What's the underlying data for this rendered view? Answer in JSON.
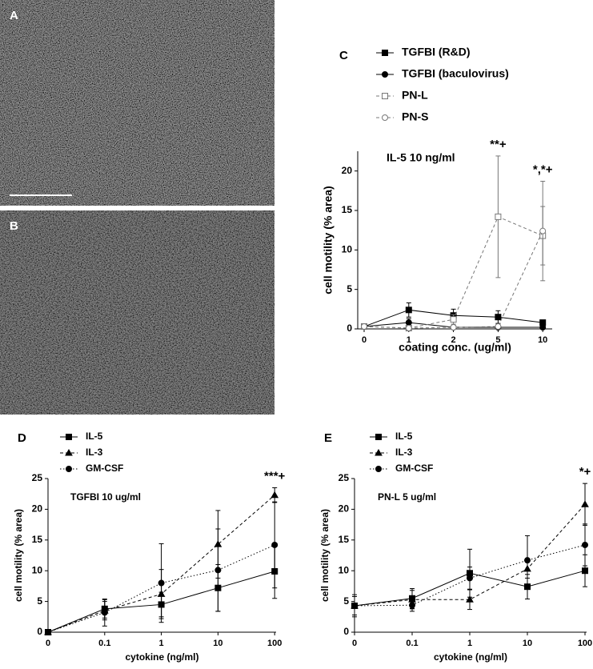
{
  "figure": {
    "image_labels": [
      "A",
      "B"
    ]
  },
  "chart_data": [
    {
      "type": "line",
      "panel_label": "C",
      "title": "IL-5 10 ng/ml",
      "x_label": "coating conc. (ug/ml)",
      "y_label": "cell motility (% area)",
      "categories": [
        "0",
        "1",
        "2",
        "5",
        "10"
      ],
      "ylim": [
        0,
        22.5
      ],
      "yticks": [
        0,
        5,
        10,
        15,
        20
      ],
      "series": [
        {
          "name": "TGFBI (R&D)",
          "color": "#000000",
          "dash": "solid",
          "marker": "square",
          "values": [
            0.3,
            2.4,
            1.7,
            1.5,
            0.8
          ],
          "errors": [
            0.3,
            0.9,
            0.8,
            0.8,
            0.3
          ]
        },
        {
          "name": "TGFBI (baculovirus)",
          "color": "#000000",
          "dash": "solid",
          "marker": "circle",
          "values": [
            0.3,
            0.8,
            0.2,
            0.2,
            0.2
          ],
          "errors": [
            0.2,
            0.5,
            0.2,
            0.2,
            0.2
          ]
        },
        {
          "name": "PN-L",
          "color": "#777777",
          "dash": "dashed",
          "marker": "open-square",
          "values": [
            0.3,
            0.1,
            1.2,
            14.2,
            11.8
          ],
          "errors": [
            0.2,
            0.1,
            0.6,
            7.7,
            3.7
          ]
        },
        {
          "name": "PN-S",
          "color": "#777777",
          "dash": "dashed",
          "marker": "open-circle",
          "values": [
            0.3,
            0.1,
            0.2,
            0.3,
            12.4
          ],
          "errors": [
            0.2,
            0.1,
            0.2,
            0.3,
            6.3
          ]
        }
      ],
      "annotations": [
        {
          "text": "**+",
          "category": "5"
        },
        {
          "text": "*,*+",
          "category": "10"
        }
      ]
    },
    {
      "type": "line",
      "panel_label": "D",
      "title": "TGFBI 10 ug/ml",
      "x_label": "cytokine (ng/ml)",
      "y_label": "cell motility (% area)",
      "categories": [
        "0",
        "0.1",
        "1",
        "10",
        "100"
      ],
      "ylim": [
        0,
        25
      ],
      "yticks": [
        0,
        5,
        10,
        15,
        20,
        25
      ],
      "series": [
        {
          "name": "IL-5",
          "color": "#000000",
          "dash": "solid",
          "marker": "square",
          "values": [
            0,
            3.8,
            4.5,
            7.2,
            9.9
          ],
          "errors": [
            0,
            1.5,
            2,
            3.8,
            4.4
          ]
        },
        {
          "name": "IL-3",
          "color": "#000000",
          "dash": "dashed",
          "marker": "triangle",
          "values": [
            0,
            3.5,
            6.2,
            14.3,
            22.3
          ],
          "errors": [
            0,
            1.5,
            4,
            5.5,
            1.2
          ]
        },
        {
          "name": "GM-CSF",
          "color": "#000000",
          "dash": "dotted",
          "marker": "circle",
          "values": [
            0,
            3.2,
            8.0,
            10.1,
            14.2
          ],
          "errors": [
            0,
            2.2,
            6.4,
            6.7,
            7
          ]
        }
      ],
      "annotations": [
        {
          "text": "***+",
          "category": "100"
        }
      ]
    },
    {
      "type": "line",
      "panel_label": "E",
      "title": "PN-L 5 ug/ml",
      "x_label": "cytokine (ng/ml)",
      "y_label": "cell motility (% area)",
      "categories": [
        "0",
        "0.1",
        "1",
        "10",
        "100"
      ],
      "ylim": [
        0,
        25
      ],
      "yticks": [
        0,
        5,
        10,
        15,
        20,
        25
      ],
      "series": [
        {
          "name": "IL-5",
          "color": "#000000",
          "dash": "solid",
          "marker": "square",
          "values": [
            4.3,
            5.5,
            9.6,
            7.4,
            10.0
          ],
          "errors": [
            1.5,
            1.6,
            3.9,
            2,
            2.6
          ]
        },
        {
          "name": "IL-3",
          "color": "#000000",
          "dash": "dashed",
          "marker": "triangle",
          "values": [
            4.3,
            5.3,
            5.3,
            10.3,
            20.8
          ],
          "errors": [
            1.8,
            1.5,
            1.6,
            1.5,
            3.4
          ]
        },
        {
          "name": "GM-CSF",
          "color": "#000000",
          "dash": "dotted",
          "marker": "circle",
          "values": [
            4.3,
            4.4,
            8.8,
            11.7,
            14.2
          ],
          "errors": [
            0,
            1,
            1.8,
            4,
            3.4
          ]
        }
      ],
      "annotations": [
        {
          "text": "*+",
          "category": "100"
        }
      ]
    }
  ]
}
